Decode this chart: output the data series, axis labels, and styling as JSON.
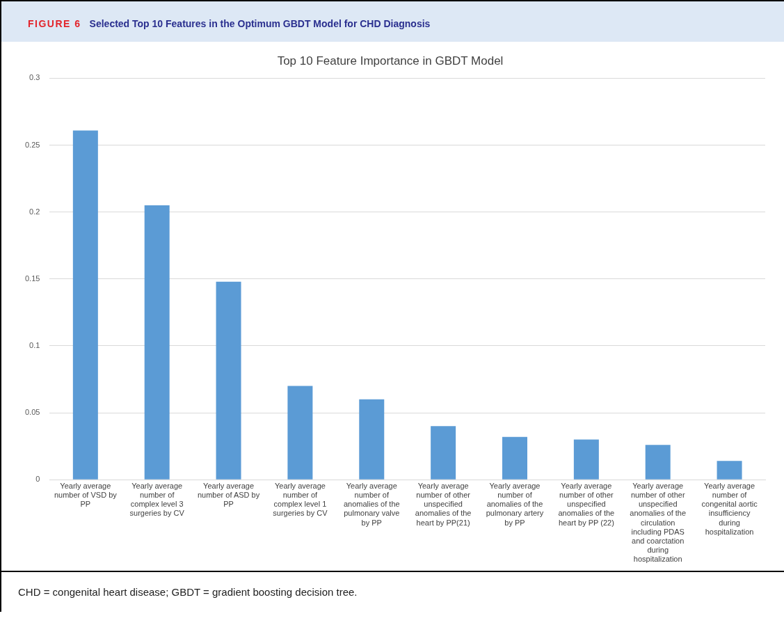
{
  "chart_data": {
    "type": "bar",
    "title": "Selected Top 10 Features in the Optimum GBDT Model for CHD Diagnosis",
    "subtitle": "Top 10 Feature Importance in GBDT Model",
    "annotations": [
      "FIGURE 6",
      "CHD = congenital heart disease; GBDT = gradient boosting decision tree."
    ],
    "categories": [
      "Yearly average number of VSD by PP",
      "Yearly average number of complex level 3 surgeries by CV",
      "Yearly average number of ASD by PP",
      "Yearly average number of complex level 1 surgeries by CV",
      "Yearly average number of anomalies of the pulmonary valve by PP",
      "Yearly average number of other unspecified anomalies of the heart by PP(21)",
      "Yearly average number of anomalies of the pulmonary artery by PP",
      "Yearly average number of other unspecified anomalies of the heart by PP (22)",
      "Yearly average number of other unspecified anomalies of the circulation including PDAS and coarctation during hospitalization",
      "Yearly average number of congenital aortic insufficiency during hospitalization"
    ],
    "values": [
      0.261,
      0.205,
      0.148,
      0.07,
      0.06,
      0.04,
      0.032,
      0.03,
      0.026,
      0.014
    ],
    "color": "#5b9bd5",
    "ylim": [
      0,
      0.3
    ],
    "yticks": [
      0,
      0.05,
      0.1,
      0.15,
      0.2,
      0.25,
      0.3
    ],
    "grid": "y",
    "legend": false
  }
}
